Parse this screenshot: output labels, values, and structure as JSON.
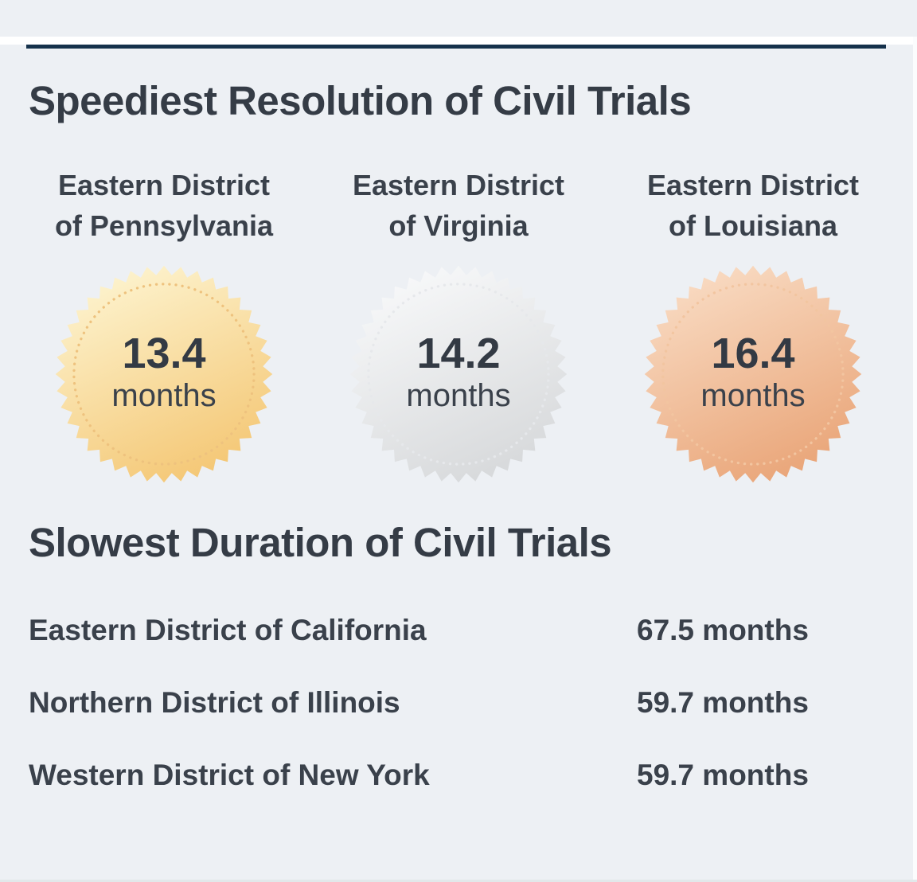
{
  "page": {
    "background_color": "#edf0f4",
    "accent_bar_color": "#15314b",
    "heading_color": "#353c46",
    "text_color": "#3a414b"
  },
  "speediest": {
    "title": "Speediest Resolution of Civil Trials",
    "medals": [
      {
        "district_line1": "Eastern District",
        "district_line2": "of Pennsylvania",
        "value": "13.4",
        "unit": "months",
        "medal": "gold",
        "colors": {
          "light": "#fdf4d0",
          "dark": "#f4c673",
          "ring": "#eec27e"
        }
      },
      {
        "district_line1": "Eastern District",
        "district_line2": "of Virginia",
        "value": "14.2",
        "unit": "months",
        "medal": "silver",
        "colors": {
          "light": "#f8f9fa",
          "dark": "#d6d8da",
          "ring": "#e6e8eb"
        }
      },
      {
        "district_line1": "Eastern District",
        "district_line2": "of Louisiana",
        "value": "16.4",
        "unit": "months",
        "medal": "bronze",
        "colors": {
          "light": "#f9dcc4",
          "dark": "#e9a477",
          "ring": "#f2c5a0"
        }
      }
    ]
  },
  "slowest": {
    "title": "Slowest Duration of Civil Trials",
    "rows": [
      {
        "district": "Eastern District of California",
        "duration": "67.5 months"
      },
      {
        "district": "Northern District of Illinois",
        "duration": "59.7 months"
      },
      {
        "district": "Western District of New York",
        "duration": "59.7 months"
      }
    ]
  },
  "chart_data": [
    {
      "type": "table",
      "title": "Speediest Resolution of Civil Trials",
      "categories": [
        "Eastern District of Pennsylvania",
        "Eastern District of Virginia",
        "Eastern District of Louisiana"
      ],
      "values": [
        13.4,
        14.2,
        16.4
      ],
      "unit": "months",
      "rank_badges": [
        "gold",
        "silver",
        "bronze"
      ]
    },
    {
      "type": "table",
      "title": "Slowest Duration of Civil Trials",
      "categories": [
        "Eastern District of California",
        "Northern District of Illinois",
        "Western District of New York"
      ],
      "values": [
        67.5,
        59.7,
        59.7
      ],
      "unit": "months"
    }
  ]
}
